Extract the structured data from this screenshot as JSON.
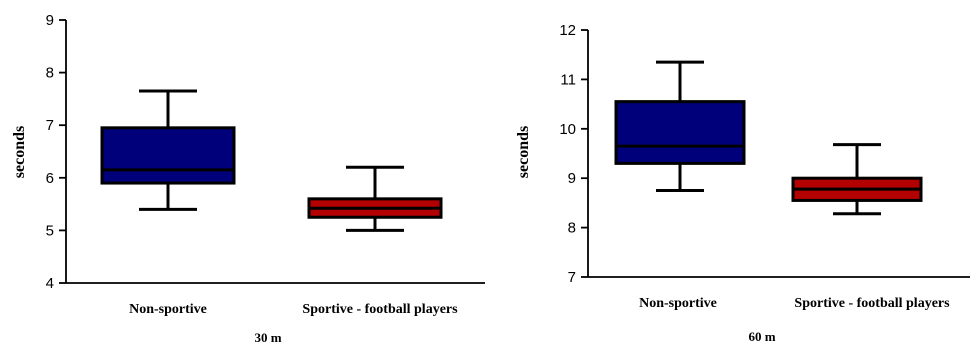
{
  "chart_data": [
    {
      "type": "boxplot",
      "xlabel": "30 m",
      "ylabel": "seconds",
      "ylim": [
        4,
        9
      ],
      "yticks": [
        4,
        5,
        6,
        7,
        8,
        9
      ],
      "categories": [
        "Non-sportive",
        "Sportive - football players"
      ],
      "boxes": [
        {
          "category": "Non-sportive",
          "min": 5.4,
          "q1": 5.9,
          "median": 6.15,
          "q3": 6.95,
          "max": 7.65,
          "color": "#00007a"
        },
        {
          "category": "Sportive - football players",
          "min": 5.0,
          "q1": 5.25,
          "median": 5.42,
          "q3": 5.6,
          "max": 6.2,
          "color": "#b30000"
        }
      ],
      "grid": false
    },
    {
      "type": "boxplot",
      "xlabel": "60 m",
      "ylabel": "seconds",
      "ylim": [
        7,
        12
      ],
      "yticks": [
        7,
        8,
        9,
        10,
        11,
        12
      ],
      "categories": [
        "Non-sportive",
        "Sportive - football players"
      ],
      "boxes": [
        {
          "category": "Non-sportive",
          "min": 8.75,
          "q1": 9.3,
          "median": 9.65,
          "q3": 10.55,
          "max": 11.35,
          "color": "#00007a"
        },
        {
          "category": "Sportive - football players",
          "min": 8.28,
          "q1": 8.55,
          "median": 8.78,
          "q3": 9.0,
          "max": 9.68,
          "color": "#b30000"
        }
      ],
      "grid": false
    }
  ]
}
